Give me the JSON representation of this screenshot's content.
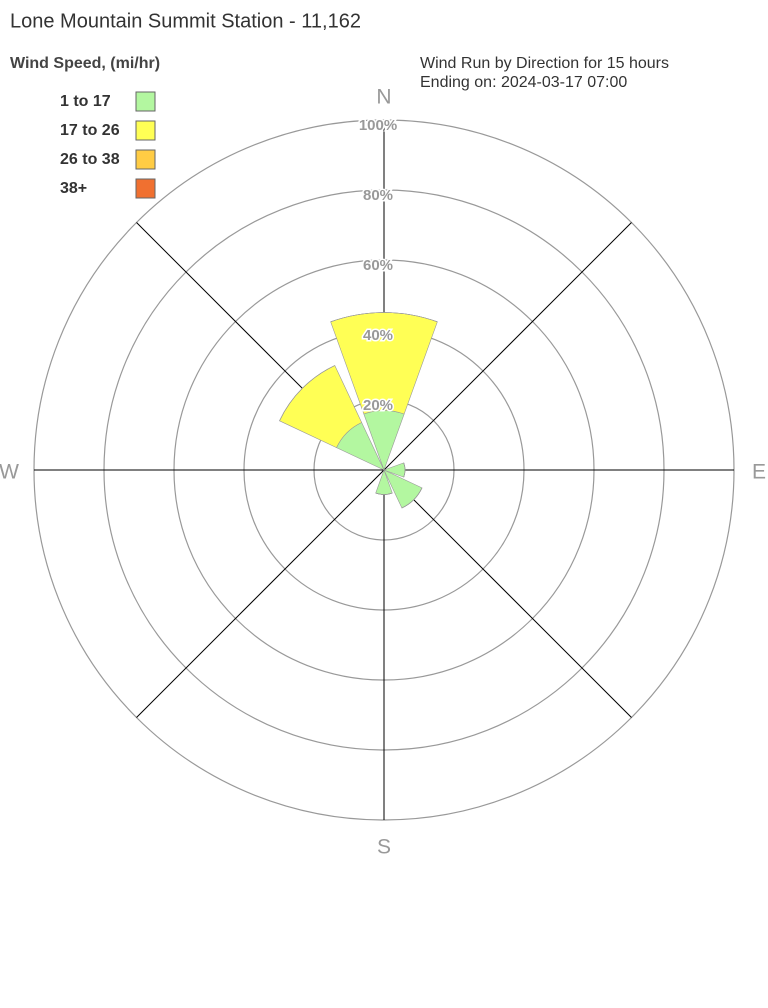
{
  "chart_data": {
    "type": "wind-rose",
    "title": "Lone Mountain Summit Station - 11,162",
    "legend_title": "Wind Speed, (mi/hr)",
    "subtitle": [
      "Wind Run by Direction for 15 hours",
      "Ending on: 2024-03-17 07:00"
    ],
    "categories": [
      "N",
      null,
      "E",
      null,
      "S",
      null,
      "W",
      null
    ],
    "series": [
      {
        "name": "1 to 17",
        "color": "#b3f7a0",
        "values": [
          17,
          0,
          6,
          12,
          7,
          0,
          0,
          15
        ]
      },
      {
        "name": "17 to 26",
        "color": "#ffff55",
        "values": [
          28,
          0,
          0,
          0,
          0,
          0,
          0,
          18
        ]
      },
      {
        "name": "26 to 38",
        "color": "#ffcc44",
        "values": [
          0,
          0,
          0,
          0,
          0,
          0,
          0,
          0
        ]
      },
      {
        "name": "38+",
        "color": "#f07030",
        "values": [
          0,
          0,
          0,
          0,
          0,
          0,
          0,
          0
        ]
      }
    ],
    "rlim": [
      0,
      100
    ],
    "rticks": [
      {
        "value": 20,
        "label": "20%"
      },
      {
        "value": 40,
        "label": "40%"
      },
      {
        "value": 60,
        "label": "60%"
      },
      {
        "value": 80,
        "label": "80%"
      },
      {
        "value": 100,
        "label": "100%"
      }
    ],
    "grid": true
  }
}
